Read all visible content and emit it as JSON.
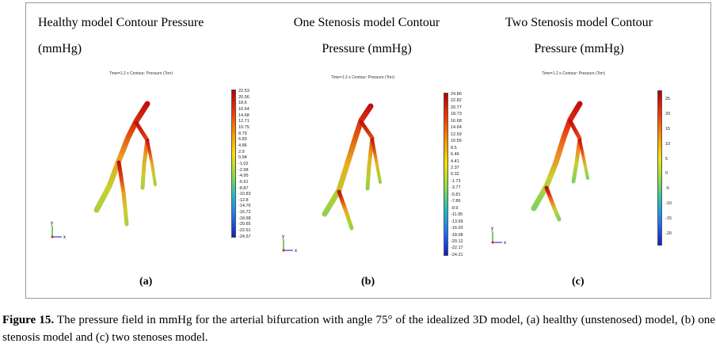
{
  "figure": {
    "panels": [
      {
        "title_line1": "Healthy model Contour Pressure",
        "title_line2": "(mmHg)",
        "subtitle": "Time=1.2 s   Contour: Pressure (Torr)",
        "label": "(a)",
        "colorbar_ticks": [
          "22.53",
          "20.56",
          "18.6",
          "16.64",
          "14.68",
          "12.71",
          "10.75",
          "8.79",
          "6.83",
          "4.86",
          "2.9",
          "0.94",
          "-1.02",
          "-2.98",
          "-4.95",
          "-6.91",
          "-8.87",
          "-10.83",
          "-12.8",
          "-14.76",
          "-16.72",
          "-18.68",
          "-20.65",
          "-22.61",
          "-24.57"
        ]
      },
      {
        "title_line1": "One Stenosis model Contour",
        "title_line2": "Pressure (mmHg)",
        "subtitle": "Time=1.2 s   Contour: Pressure (Torr)",
        "label": "(b)",
        "colorbar_ticks": [
          "24.86",
          "22.82",
          "20.77",
          "18.73",
          "16.68",
          "14.64",
          "12.59",
          "10.55",
          "8.5",
          "6.46",
          "4.41",
          "2.37",
          "0.32",
          "-1.72",
          "-3.77",
          "-5.81",
          "-7.86",
          "-9.9",
          "-11.95",
          "-13.99",
          "-16.03",
          "-18.08",
          "-20.12",
          "-22.17",
          "-24.21"
        ]
      },
      {
        "title_line1": "Two Stenosis model Contour",
        "title_line2": "Pressure (mmHg)",
        "subtitle": "Time=1.2 s   Contour: Pressure (Torr)",
        "label": "(c)",
        "colorbar_ticks": [
          "25",
          "20",
          "15",
          "10",
          "5",
          "0",
          "-5",
          "-10",
          "-15",
          "-20"
        ]
      }
    ],
    "axis_labels": {
      "x": "x",
      "y": "y"
    },
    "colors": {
      "high": "#c00000",
      "low": "#1a1aa0"
    }
  },
  "caption": {
    "label": "Figure 15.",
    "text": " The pressure field in mmHg for the arterial bifurcation with angle 75° of the idealized 3D model, (a) healthy (unstenosed) model, (b) one stenosis model and (c) two stenoses model."
  }
}
